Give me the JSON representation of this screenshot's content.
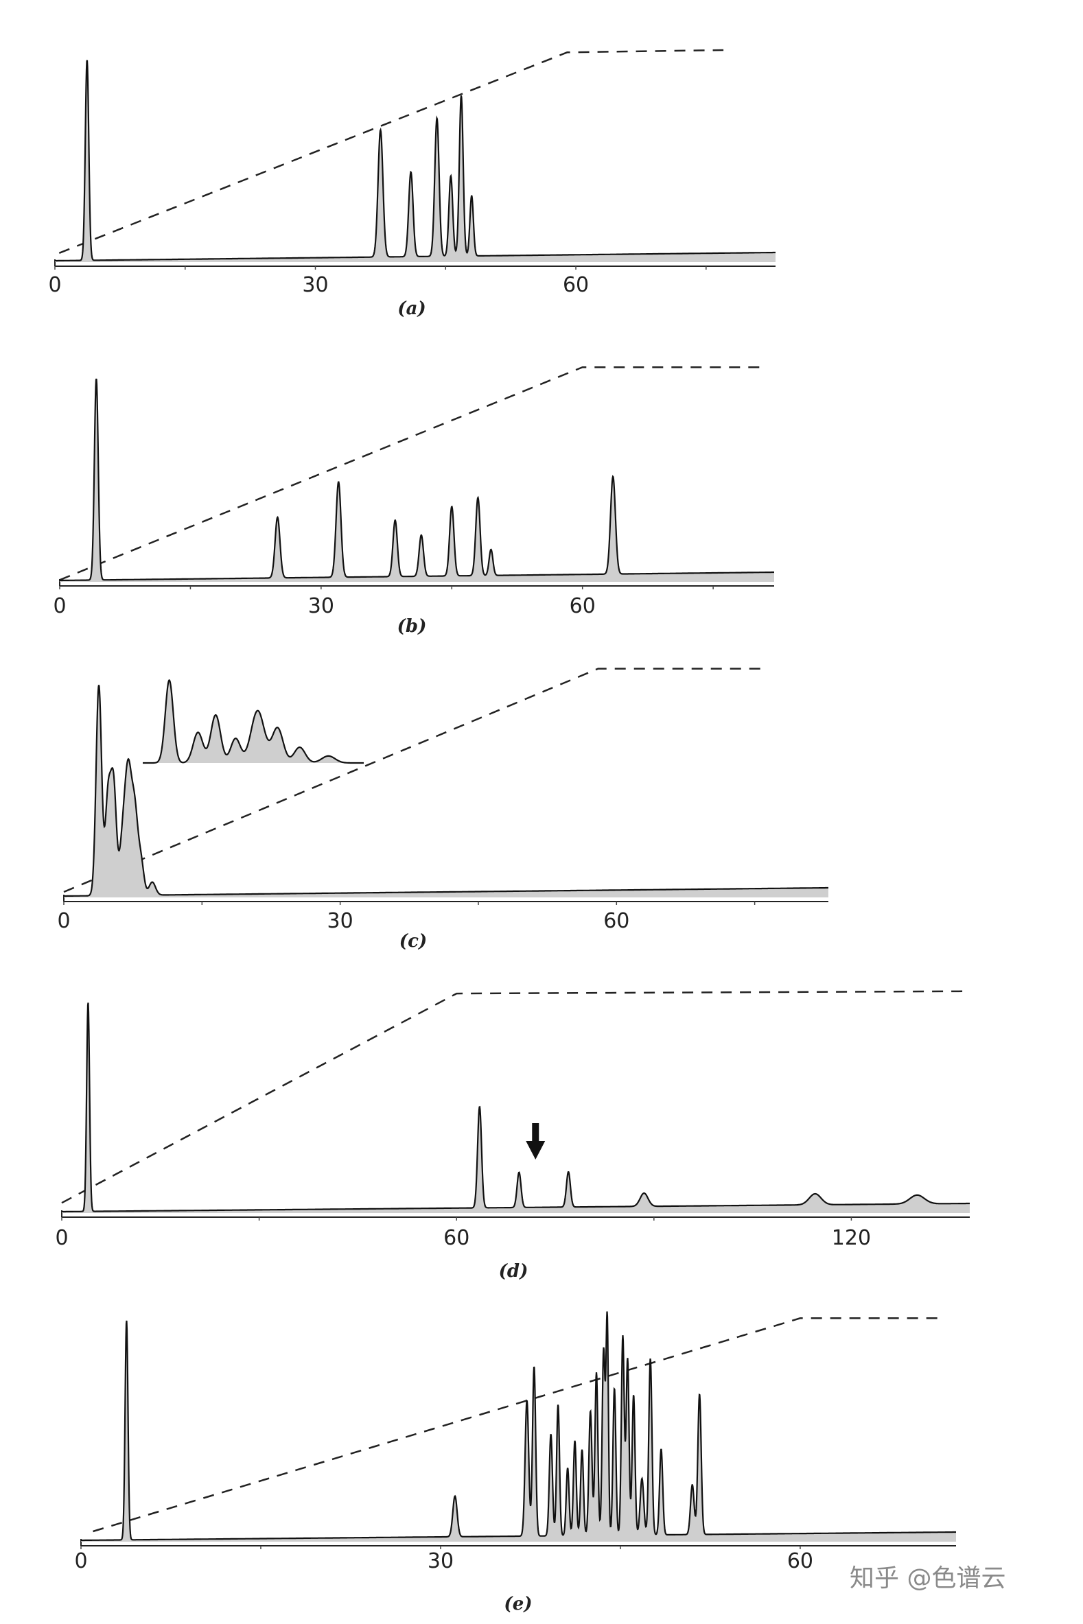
{
  "chart_data": [
    {
      "type": "line",
      "panel_label": "(a)",
      "x_ticks": [
        0,
        30,
        60
      ],
      "xlim": [
        0,
        83
      ],
      "gradient_profile": [
        [
          0.5,
          0.05
        ],
        [
          59,
          0.95
        ],
        [
          77,
          0.96
        ]
      ],
      "peaks": [
        {
          "t": 3.7,
          "h": 0.9,
          "w": 0.2
        },
        {
          "t": 37.5,
          "h": 0.57,
          "w": 0.28
        },
        {
          "t": 41.0,
          "h": 0.38,
          "w": 0.25
        },
        {
          "t": 44.0,
          "h": 0.62,
          "w": 0.25
        },
        {
          "t": 45.6,
          "h": 0.36,
          "w": 0.22
        },
        {
          "t": 46.8,
          "h": 0.72,
          "w": 0.22
        },
        {
          "t": 48.0,
          "h": 0.27,
          "w": 0.2
        }
      ]
    },
    {
      "type": "line",
      "panel_label": "(b)",
      "x_ticks": [
        0,
        30,
        60
      ],
      "xlim": [
        0,
        82
      ],
      "gradient_profile": [
        [
          0,
          0.02
        ],
        [
          60,
          0.94
        ],
        [
          81,
          0.94
        ]
      ],
      "peaks": [
        {
          "t": 4.2,
          "h": 0.93,
          "w": 0.22
        },
        {
          "t": 25.0,
          "h": 0.28,
          "w": 0.28
        },
        {
          "t": 32.0,
          "h": 0.44,
          "w": 0.28
        },
        {
          "t": 38.5,
          "h": 0.26,
          "w": 0.25
        },
        {
          "t": 41.5,
          "h": 0.19,
          "w": 0.25
        },
        {
          "t": 45.0,
          "h": 0.32,
          "w": 0.25
        },
        {
          "t": 48.0,
          "h": 0.36,
          "w": 0.25
        },
        {
          "t": 49.5,
          "h": 0.12,
          "w": 0.22
        },
        {
          "t": 63.5,
          "h": 0.45,
          "w": 0.28
        }
      ]
    },
    {
      "type": "line",
      "panel_label": "(c)",
      "x_ticks": [
        0,
        30,
        60
      ],
      "xlim": [
        0,
        83
      ],
      "gradient_profile": [
        [
          0,
          0.0
        ],
        [
          58,
          0.98
        ],
        [
          76,
          0.98
        ]
      ],
      "peaks": [
        {
          "t": 3.8,
          "h": 0.97,
          "w": 0.3
        },
        {
          "t": 4.8,
          "h": 0.45,
          "w": 0.3
        },
        {
          "t": 5.4,
          "h": 0.5,
          "w": 0.3
        },
        {
          "t": 6.4,
          "h": 0.25,
          "w": 0.35
        },
        {
          "t": 7.0,
          "h": 0.52,
          "w": 0.35
        },
        {
          "t": 7.7,
          "h": 0.38,
          "w": 0.35
        },
        {
          "t": 8.4,
          "h": 0.14,
          "w": 0.3
        },
        {
          "t": 9.6,
          "h": 0.06,
          "w": 0.35
        }
      ],
      "inset": [
        {
          "t": 0.12,
          "h": 0.95,
          "w": 0.018
        },
        {
          "t": 0.25,
          "h": 0.35,
          "w": 0.022
        },
        {
          "t": 0.33,
          "h": 0.55,
          "w": 0.022
        },
        {
          "t": 0.42,
          "h": 0.28,
          "w": 0.022
        },
        {
          "t": 0.52,
          "h": 0.6,
          "w": 0.03
        },
        {
          "t": 0.61,
          "h": 0.4,
          "w": 0.025
        },
        {
          "t": 0.71,
          "h": 0.18,
          "w": 0.025
        },
        {
          "t": 0.84,
          "h": 0.08,
          "w": 0.03
        }
      ]
    },
    {
      "type": "line",
      "panel_label": "(d)",
      "x_ticks": [
        0,
        60,
        120
      ],
      "xlim": [
        0,
        138
      ],
      "gradient_profile": [
        [
          0,
          0.03
        ],
        [
          60,
          0.96
        ],
        [
          137,
          0.97
        ]
      ],
      "peaks": [
        {
          "t": 4.0,
          "h": 0.95,
          "w": 0.22
        },
        {
          "t": 63.5,
          "h": 0.46,
          "w": 0.3
        },
        {
          "t": 69.5,
          "h": 0.16,
          "w": 0.3
        },
        {
          "t": 77.0,
          "h": 0.16,
          "w": 0.3
        },
        {
          "t": 88.5,
          "h": 0.06,
          "w": 0.6
        },
        {
          "t": 114.5,
          "h": 0.05,
          "w": 0.9
        },
        {
          "t": 130.0,
          "h": 0.04,
          "w": 1.1
        }
      ],
      "arrow_at": 72.0
    },
    {
      "type": "line",
      "panel_label": "(e)",
      "x_ticks": [
        0,
        30,
        60
      ],
      "xlim": [
        0,
        73
      ],
      "gradient_profile": [
        [
          1,
          0.0
        ],
        [
          60,
          0.98
        ],
        [
          71.5,
          0.98
        ]
      ],
      "peaks": [
        {
          "t": 3.8,
          "h": 0.97,
          "w": 0.12
        },
        {
          "t": 31.2,
          "h": 0.18,
          "w": 0.18
        },
        {
          "t": 37.2,
          "h": 0.6,
          "w": 0.15
        },
        {
          "t": 37.8,
          "h": 0.75,
          "w": 0.13
        },
        {
          "t": 39.2,
          "h": 0.45,
          "w": 0.13
        },
        {
          "t": 39.8,
          "h": 0.58,
          "w": 0.12
        },
        {
          "t": 40.6,
          "h": 0.3,
          "w": 0.12
        },
        {
          "t": 41.2,
          "h": 0.42,
          "w": 0.12
        },
        {
          "t": 41.8,
          "h": 0.38,
          "w": 0.12
        },
        {
          "t": 42.5,
          "h": 0.55,
          "w": 0.13
        },
        {
          "t": 43.0,
          "h": 0.72,
          "w": 0.12
        },
        {
          "t": 43.6,
          "h": 0.82,
          "w": 0.12
        },
        {
          "t": 43.9,
          "h": 0.95,
          "w": 0.1
        },
        {
          "t": 44.5,
          "h": 0.65,
          "w": 0.12
        },
        {
          "t": 45.2,
          "h": 0.88,
          "w": 0.12
        },
        {
          "t": 45.6,
          "h": 0.78,
          "w": 0.12
        },
        {
          "t": 46.1,
          "h": 0.62,
          "w": 0.12
        },
        {
          "t": 46.8,
          "h": 0.25,
          "w": 0.15
        },
        {
          "t": 47.5,
          "h": 0.78,
          "w": 0.13
        },
        {
          "t": 48.4,
          "h": 0.38,
          "w": 0.13
        },
        {
          "t": 51.0,
          "h": 0.22,
          "w": 0.15
        },
        {
          "t": 51.6,
          "h": 0.62,
          "w": 0.14
        }
      ]
    }
  ],
  "watermark": "知乎 @色谱云"
}
